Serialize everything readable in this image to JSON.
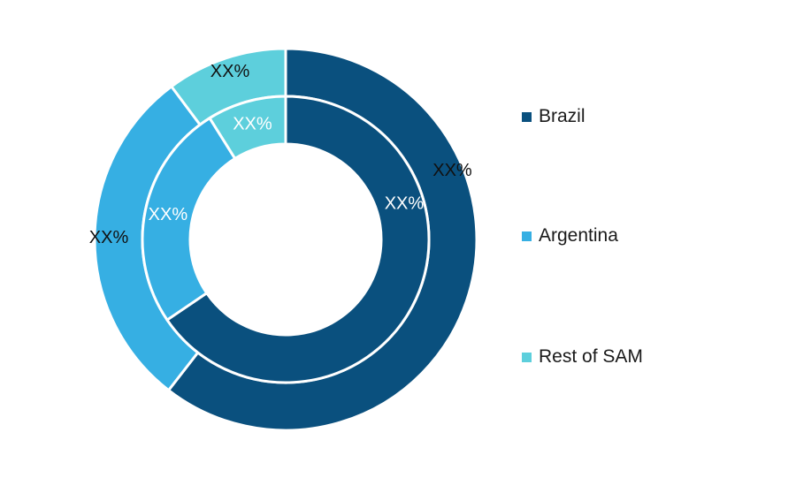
{
  "chart_data": {
    "type": "pie",
    "chart_style": "nested-donut",
    "categories": [
      "Brazil",
      "Argentina",
      "Rest of SAM"
    ],
    "colors": [
      "#0a507e",
      "#36afe3",
      "#5dcfdc"
    ],
    "label_color_dark": "#111111",
    "label_color_light": "#ffffff",
    "series": [
      {
        "ring": "outer",
        "values": [
          60.5,
          29.3,
          10.2
        ],
        "labels": [
          "XX%",
          "XX%",
          "XX%"
        ]
      },
      {
        "ring": "inner",
        "values": [
          65.5,
          25.6,
          8.9
        ],
        "labels": [
          "XX%",
          "XX%",
          "XX%"
        ]
      }
    ],
    "legend": {
      "position": "right",
      "entries": [
        "Brazil",
        "Argentina",
        "Rest of SAM"
      ]
    }
  }
}
